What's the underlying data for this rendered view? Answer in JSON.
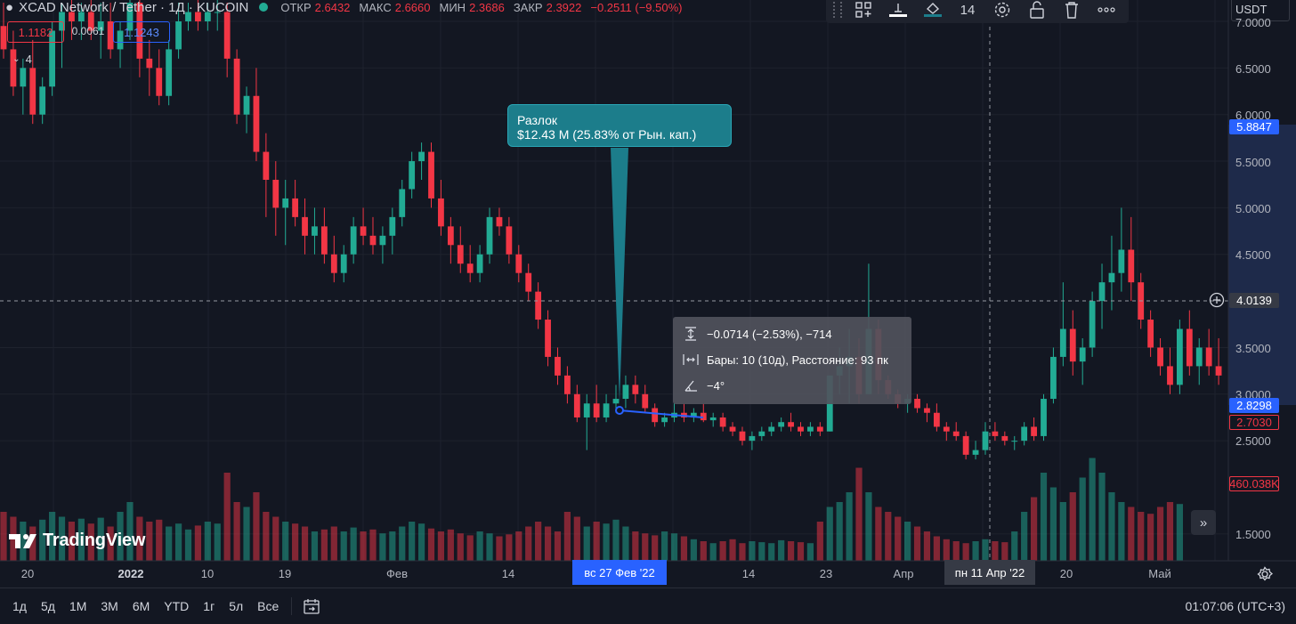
{
  "header": {
    "symbol": "XCAD Network / Tether · 1Д · KUCOIN",
    "open_label": "ОТКР",
    "open": "2.6432",
    "high_label": "МАКС",
    "high": "2.6660",
    "low_label": "МИН",
    "low": "2.3686",
    "close_label": "ЗАКР",
    "close": "2.3922",
    "change": "−0.2511 (−9.50%)"
  },
  "quote": {
    "bid": "1.1182",
    "spread": "0.0061",
    "ask": "1.1243"
  },
  "indicator_collapse": "4",
  "toolbar": {
    "icons": [
      "layout-grid-icon",
      "line-style-icon",
      "fill-color-icon",
      "font-size",
      "settings-icon",
      "lock-icon",
      "trash-icon",
      "more-icon"
    ],
    "font_size": "14"
  },
  "currency": "USDT",
  "callout": {
    "title": "Разлок",
    "text": "$12.43 M (25.83% от Рын. кап.)"
  },
  "measure": {
    "price_change": "−0.0714 (−2.53%), −714",
    "bars": "Бары: 10 (10д), Расстояние: 93 пк",
    "angle": "−4°"
  },
  "price_axis": {
    "ticks": [
      "7.0000",
      "6.5000",
      "6.0000",
      "5.5000",
      "5.0000",
      "4.5000",
      "3.5000",
      "3.0000",
      "2.5000",
      "1.5000"
    ],
    "measure_top": "5.8847",
    "crosshair": "4.0139",
    "measure_bottom": "2.8298",
    "last_price": "2.7030",
    "volume": "460.038K"
  },
  "time_axis": {
    "ticks": [
      "20",
      "2022",
      "10",
      "19",
      "Фев",
      "14",
      "14",
      "23",
      "Апр",
      "20",
      "Май"
    ],
    "measure_start": "вс 27 Фев '22",
    "crosshair": "пн 11 Апр '22"
  },
  "ranges": [
    "1д",
    "5д",
    "1М",
    "3М",
    "6М",
    "YTD",
    "1г",
    "5л",
    "Все"
  ],
  "clock": "01:07:06 (UTC+3)",
  "logo_text": "TradingView",
  "colors": {
    "up": "#22ab94",
    "down": "#f23645",
    "background": "#131722",
    "accent": "#2962ff",
    "callout": "#1c7d8b"
  },
  "chart_data": {
    "type": "candlestick",
    "title": "XCAD Network / Tether · 1Д · KUCOIN",
    "ylim": [
      1.2,
      7.2
    ],
    "y_ticks": [
      1.5,
      2.5,
      3.0,
      3.5,
      4.5,
      5.0,
      5.5,
      6.0,
      6.5,
      7.0
    ],
    "grid": true,
    "candles": [
      {
        "o": 6.95,
        "h": 7.2,
        "l": 6.6,
        "c": 6.7
      },
      {
        "o": 6.7,
        "h": 6.9,
        "l": 6.2,
        "c": 6.3
      },
      {
        "o": 6.3,
        "h": 6.6,
        "l": 6.0,
        "c": 6.5
      },
      {
        "o": 6.5,
        "h": 6.8,
        "l": 5.9,
        "c": 6.0
      },
      {
        "o": 6.0,
        "h": 6.4,
        "l": 5.9,
        "c": 6.3
      },
      {
        "o": 6.3,
        "h": 7.0,
        "l": 6.2,
        "c": 6.9
      },
      {
        "o": 6.9,
        "h": 7.2,
        "l": 6.5,
        "c": 7.1
      },
      {
        "o": 7.1,
        "h": 7.3,
        "l": 6.8,
        "c": 7.0
      },
      {
        "o": 7.0,
        "h": 7.2,
        "l": 6.8,
        "c": 7.1
      },
      {
        "o": 7.1,
        "h": 7.3,
        "l": 6.8,
        "c": 6.9
      },
      {
        "o": 6.9,
        "h": 7.2,
        "l": 6.6,
        "c": 7.0
      },
      {
        "o": 7.0,
        "h": 7.2,
        "l": 6.6,
        "c": 6.7
      },
      {
        "o": 6.7,
        "h": 7.0,
        "l": 6.5,
        "c": 6.9
      },
      {
        "o": 6.9,
        "h": 7.3,
        "l": 6.8,
        "c": 7.2
      },
      {
        "o": 7.2,
        "h": 7.3,
        "l": 6.4,
        "c": 6.6
      },
      {
        "o": 6.6,
        "h": 6.8,
        "l": 6.2,
        "c": 6.5
      },
      {
        "o": 6.5,
        "h": 6.7,
        "l": 6.1,
        "c": 6.2
      },
      {
        "o": 6.2,
        "h": 6.8,
        "l": 6.1,
        "c": 6.7
      },
      {
        "o": 6.7,
        "h": 7.2,
        "l": 6.6,
        "c": 7.0
      },
      {
        "o": 7.0,
        "h": 7.2,
        "l": 6.9,
        "c": 7.1
      },
      {
        "o": 7.1,
        "h": 7.3,
        "l": 6.9,
        "c": 7.0
      },
      {
        "o": 7.0,
        "h": 7.2,
        "l": 6.9,
        "c": 7.1
      },
      {
        "o": 7.1,
        "h": 7.3,
        "l": 6.9,
        "c": 7.1
      },
      {
        "o": 7.1,
        "h": 7.2,
        "l": 6.4,
        "c": 6.6
      },
      {
        "o": 6.6,
        "h": 6.7,
        "l": 5.9,
        "c": 6.0
      },
      {
        "o": 6.0,
        "h": 6.3,
        "l": 5.8,
        "c": 6.2
      },
      {
        "o": 6.2,
        "h": 6.5,
        "l": 5.5,
        "c": 5.6
      },
      {
        "o": 5.6,
        "h": 5.8,
        "l": 4.9,
        "c": 5.3
      },
      {
        "o": 5.3,
        "h": 5.5,
        "l": 4.7,
        "c": 5.0
      },
      {
        "o": 5.0,
        "h": 5.3,
        "l": 4.6,
        "c": 5.1
      },
      {
        "o": 5.1,
        "h": 5.3,
        "l": 4.8,
        "c": 4.9
      },
      {
        "o": 4.9,
        "h": 5.1,
        "l": 4.5,
        "c": 4.7
      },
      {
        "o": 4.7,
        "h": 5.0,
        "l": 4.5,
        "c": 4.8
      },
      {
        "o": 4.8,
        "h": 5.0,
        "l": 4.4,
        "c": 4.5
      },
      {
        "o": 4.5,
        "h": 4.7,
        "l": 4.2,
        "c": 4.3
      },
      {
        "o": 4.3,
        "h": 4.6,
        "l": 4.2,
        "c": 4.5
      },
      {
        "o": 4.5,
        "h": 4.9,
        "l": 4.4,
        "c": 4.8
      },
      {
        "o": 4.8,
        "h": 5.0,
        "l": 4.6,
        "c": 4.7
      },
      {
        "o": 4.7,
        "h": 4.9,
        "l": 4.5,
        "c": 4.6
      },
      {
        "o": 4.6,
        "h": 4.8,
        "l": 4.4,
        "c": 4.7
      },
      {
        "o": 4.7,
        "h": 5.0,
        "l": 4.5,
        "c": 4.9
      },
      {
        "o": 4.9,
        "h": 5.3,
        "l": 4.8,
        "c": 5.2
      },
      {
        "o": 5.2,
        "h": 5.6,
        "l": 5.1,
        "c": 5.5
      },
      {
        "o": 5.5,
        "h": 5.7,
        "l": 5.3,
        "c": 5.6
      },
      {
        "o": 5.6,
        "h": 5.7,
        "l": 5.0,
        "c": 5.1
      },
      {
        "o": 5.1,
        "h": 5.3,
        "l": 4.7,
        "c": 4.8
      },
      {
        "o": 4.8,
        "h": 4.9,
        "l": 4.4,
        "c": 4.6
      },
      {
        "o": 4.6,
        "h": 4.8,
        "l": 4.3,
        "c": 4.4
      },
      {
        "o": 4.4,
        "h": 4.6,
        "l": 4.2,
        "c": 4.3
      },
      {
        "o": 4.3,
        "h": 4.6,
        "l": 4.2,
        "c": 4.5
      },
      {
        "o": 4.5,
        "h": 5.0,
        "l": 4.4,
        "c": 4.9
      },
      {
        "o": 4.9,
        "h": 5.0,
        "l": 4.7,
        "c": 4.8
      },
      {
        "o": 4.8,
        "h": 4.9,
        "l": 4.4,
        "c": 4.5
      },
      {
        "o": 4.5,
        "h": 4.6,
        "l": 4.2,
        "c": 4.3
      },
      {
        "o": 4.3,
        "h": 4.4,
        "l": 4.0,
        "c": 4.1
      },
      {
        "o": 4.1,
        "h": 4.2,
        "l": 3.7,
        "c": 3.8
      },
      {
        "o": 3.8,
        "h": 3.9,
        "l": 3.3,
        "c": 3.4
      },
      {
        "o": 3.4,
        "h": 3.5,
        "l": 3.1,
        "c": 3.2
      },
      {
        "o": 3.2,
        "h": 3.3,
        "l": 2.9,
        "c": 3.0
      },
      {
        "o": 3.0,
        "h": 3.1,
        "l": 2.7,
        "c": 2.75
      },
      {
        "o": 2.75,
        "h": 3.0,
        "l": 2.4,
        "c": 2.9
      },
      {
        "o": 2.9,
        "h": 3.1,
        "l": 2.7,
        "c": 2.75
      },
      {
        "o": 2.75,
        "h": 3.0,
        "l": 2.7,
        "c": 2.9
      },
      {
        "o": 2.9,
        "h": 3.1,
        "l": 2.8,
        "c": 2.95
      },
      {
        "o": 2.95,
        "h": 3.2,
        "l": 2.85,
        "c": 3.1
      },
      {
        "o": 3.1,
        "h": 3.2,
        "l": 2.9,
        "c": 3.0
      },
      {
        "o": 3.0,
        "h": 3.1,
        "l": 2.8,
        "c": 2.85
      },
      {
        "o": 2.85,
        "h": 2.9,
        "l": 2.65,
        "c": 2.7
      },
      {
        "o": 2.7,
        "h": 2.8,
        "l": 2.65,
        "c": 2.75
      },
      {
        "o": 2.75,
        "h": 2.9,
        "l": 2.7,
        "c": 2.8
      },
      {
        "o": 2.8,
        "h": 2.9,
        "l": 2.7,
        "c": 2.75
      },
      {
        "o": 2.75,
        "h": 2.85,
        "l": 2.7,
        "c": 2.8
      },
      {
        "o": 2.8,
        "h": 2.9,
        "l": 2.7,
        "c": 2.72
      },
      {
        "o": 2.72,
        "h": 2.8,
        "l": 2.65,
        "c": 2.75
      },
      {
        "o": 2.75,
        "h": 2.8,
        "l": 2.6,
        "c": 2.65
      },
      {
        "o": 2.65,
        "h": 2.7,
        "l": 2.55,
        "c": 2.6
      },
      {
        "o": 2.6,
        "h": 2.65,
        "l": 2.45,
        "c": 2.5
      },
      {
        "o": 2.5,
        "h": 2.6,
        "l": 2.4,
        "c": 2.55
      },
      {
        "o": 2.55,
        "h": 2.65,
        "l": 2.5,
        "c": 2.6
      },
      {
        "o": 2.6,
        "h": 2.7,
        "l": 2.55,
        "c": 2.65
      },
      {
        "o": 2.65,
        "h": 2.75,
        "l": 2.6,
        "c": 2.7
      },
      {
        "o": 2.7,
        "h": 2.8,
        "l": 2.6,
        "c": 2.65
      },
      {
        "o": 2.65,
        "h": 2.7,
        "l": 2.55,
        "c": 2.6
      },
      {
        "o": 2.6,
        "h": 2.7,
        "l": 2.55,
        "c": 2.65
      },
      {
        "o": 2.65,
        "h": 2.7,
        "l": 2.55,
        "c": 2.6
      },
      {
        "o": 2.6,
        "h": 3.2,
        "l": 2.6,
        "c": 3.2
      },
      {
        "o": 3.2,
        "h": 3.5,
        "l": 3.0,
        "c": 3.3
      },
      {
        "o": 3.3,
        "h": 3.7,
        "l": 2.9,
        "c": 3.4
      },
      {
        "o": 3.4,
        "h": 3.6,
        "l": 2.9,
        "c": 3.0
      },
      {
        "o": 3.0,
        "h": 4.4,
        "l": 3.0,
        "c": 3.7
      },
      {
        "o": 3.7,
        "h": 3.8,
        "l": 3.0,
        "c": 3.15
      },
      {
        "o": 3.15,
        "h": 3.2,
        "l": 2.95,
        "c": 3.0
      },
      {
        "o": 3.0,
        "h": 3.05,
        "l": 2.85,
        "c": 2.9
      },
      {
        "o": 2.9,
        "h": 3.0,
        "l": 2.8,
        "c": 2.95
      },
      {
        "o": 2.95,
        "h": 3.0,
        "l": 2.8,
        "c": 2.85
      },
      {
        "o": 2.85,
        "h": 2.9,
        "l": 2.7,
        "c": 2.8
      },
      {
        "o": 2.8,
        "h": 2.9,
        "l": 2.6,
        "c": 2.65
      },
      {
        "o": 2.65,
        "h": 2.7,
        "l": 2.5,
        "c": 2.6
      },
      {
        "o": 2.6,
        "h": 2.7,
        "l": 2.5,
        "c": 2.55
      },
      {
        "o": 2.55,
        "h": 2.6,
        "l": 2.3,
        "c": 2.35
      },
      {
        "o": 2.35,
        "h": 2.5,
        "l": 2.3,
        "c": 2.4
      },
      {
        "o": 2.4,
        "h": 2.7,
        "l": 2.35,
        "c": 2.6
      },
      {
        "o": 2.6,
        "h": 2.7,
        "l": 2.5,
        "c": 2.55
      },
      {
        "o": 2.55,
        "h": 2.6,
        "l": 2.45,
        "c": 2.5
      },
      {
        "o": 2.5,
        "h": 2.55,
        "l": 2.4,
        "c": 2.5
      },
      {
        "o": 2.5,
        "h": 2.7,
        "l": 2.45,
        "c": 2.65
      },
      {
        "o": 2.65,
        "h": 2.75,
        "l": 2.5,
        "c": 2.55
      },
      {
        "o": 2.55,
        "h": 3.0,
        "l": 2.5,
        "c": 2.95
      },
      {
        "o": 2.95,
        "h": 3.5,
        "l": 2.9,
        "c": 3.4
      },
      {
        "o": 3.4,
        "h": 4.2,
        "l": 3.3,
        "c": 3.7
      },
      {
        "o": 3.7,
        "h": 3.9,
        "l": 3.2,
        "c": 3.35
      },
      {
        "o": 3.35,
        "h": 3.6,
        "l": 3.1,
        "c": 3.5
      },
      {
        "o": 3.5,
        "h": 4.1,
        "l": 3.4,
        "c": 4.0
      },
      {
        "o": 4.0,
        "h": 4.4,
        "l": 3.7,
        "c": 4.2
      },
      {
        "o": 4.2,
        "h": 4.7,
        "l": 3.9,
        "c": 4.3
      },
      {
        "o": 4.3,
        "h": 5.0,
        "l": 4.1,
        "c": 4.55
      },
      {
        "o": 4.55,
        "h": 4.9,
        "l": 4.0,
        "c": 4.2
      },
      {
        "o": 4.2,
        "h": 4.3,
        "l": 3.7,
        "c": 3.8
      },
      {
        "o": 3.8,
        "h": 3.9,
        "l": 3.4,
        "c": 3.5
      },
      {
        "o": 3.5,
        "h": 3.6,
        "l": 3.2,
        "c": 3.3
      },
      {
        "o": 3.3,
        "h": 3.5,
        "l": 3.0,
        "c": 3.1
      },
      {
        "o": 3.1,
        "h": 3.8,
        "l": 3.0,
        "c": 3.7
      },
      {
        "o": 3.7,
        "h": 3.9,
        "l": 3.2,
        "c": 3.3
      },
      {
        "o": 3.3,
        "h": 3.6,
        "l": 3.1,
        "c": 3.5
      },
      {
        "o": 3.5,
        "h": 3.7,
        "l": 3.2,
        "c": 3.3
      },
      {
        "o": 3.3,
        "h": 3.6,
        "l": 3.1,
        "c": 3.2
      }
    ],
    "volume": [
      0.5,
      0.45,
      0.4,
      0.35,
      0.42,
      0.5,
      0.45,
      0.4,
      0.43,
      0.38,
      0.44,
      0.35,
      0.5,
      0.6,
      0.45,
      0.4,
      0.42,
      0.35,
      0.38,
      0.32,
      0.36,
      0.4,
      0.38,
      0.9,
      0.6,
      0.55,
      0.7,
      0.5,
      0.45,
      0.4,
      0.38,
      0.35,
      0.3,
      0.32,
      0.35,
      0.3,
      0.34,
      0.3,
      0.32,
      0.28,
      0.3,
      0.35,
      0.4,
      0.38,
      0.33,
      0.3,
      0.32,
      0.28,
      0.26,
      0.3,
      0.28,
      0.25,
      0.27,
      0.3,
      0.35,
      0.4,
      0.35,
      0.3,
      0.5,
      0.45,
      0.35,
      0.4,
      0.38,
      0.42,
      0.35,
      0.3,
      0.28,
      0.26,
      0.3,
      0.28,
      0.25,
      0.22,
      0.2,
      0.18,
      0.2,
      0.22,
      0.18,
      0.2,
      0.19,
      0.18,
      0.21,
      0.2,
      0.19,
      0.18,
      0.4,
      0.55,
      0.6,
      0.7,
      0.95,
      0.7,
      0.55,
      0.5,
      0.45,
      0.4,
      0.35,
      0.3,
      0.25,
      0.22,
      0.2,
      0.18,
      0.2,
      0.22,
      0.2,
      0.19,
      0.3,
      0.5,
      0.65,
      0.9,
      0.75,
      0.6,
      0.7,
      0.85,
      1.05,
      0.9,
      0.7,
      0.6,
      0.55,
      0.5,
      0.48,
      0.55,
      0.6,
      0.58
    ],
    "annotations": [
      "Разлок",
      "$12.43 M (25.83% от Рын. кап.)"
    ]
  }
}
